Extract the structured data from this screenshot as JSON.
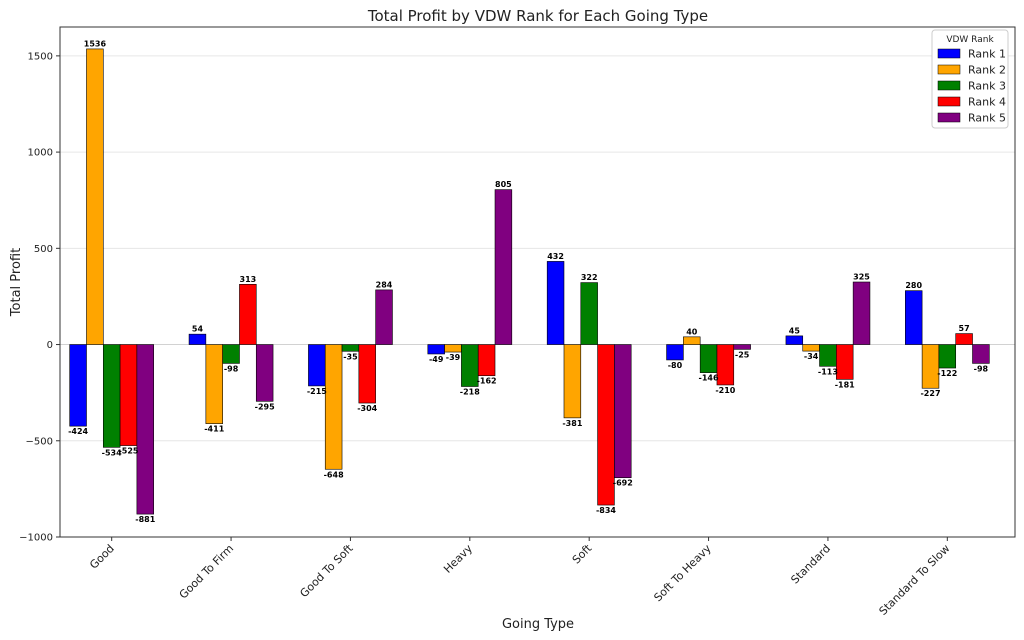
{
  "chart_data": {
    "type": "bar",
    "title": "Total Profit by VDW Rank for Each Going Type",
    "xlabel": "Going Type",
    "ylabel": "Total Profit",
    "ylim": [
      -1000,
      1650
    ],
    "yticks": [
      -1000,
      -500,
      0,
      500,
      1000,
      1500
    ],
    "ytick_labels": [
      "−1000",
      "−500",
      "0",
      "500",
      "1000",
      "1500"
    ],
    "grid": true,
    "legend": {
      "title": "VDW Rank",
      "position": "top-right"
    },
    "categories": [
      "Good",
      "Good To Firm",
      "Good To Soft",
      "Heavy",
      "Soft",
      "Soft To Heavy",
      "Standard",
      "Standard To Slow"
    ],
    "series": [
      {
        "name": "Rank 1",
        "color": "#0000ff",
        "values": [
          -424,
          54,
          -215,
          -49,
          432,
          -80,
          45,
          280
        ]
      },
      {
        "name": "Rank 2",
        "color": "#ffa500",
        "values": [
          1536,
          -411,
          -648,
          -39,
          -381,
          40,
          -34,
          -227
        ]
      },
      {
        "name": "Rank 3",
        "color": "#008000",
        "values": [
          -534,
          -98,
          -35,
          -218,
          322,
          -146,
          -113,
          -122
        ]
      },
      {
        "name": "Rank 4",
        "color": "#ff0000",
        "values": [
          -525,
          313,
          -304,
          -162,
          -834,
          -210,
          -181,
          57
        ]
      },
      {
        "name": "Rank 5",
        "color": "#800080",
        "values": [
          -881,
          -295,
          284,
          805,
          -692,
          -25,
          325,
          -98
        ]
      }
    ]
  }
}
